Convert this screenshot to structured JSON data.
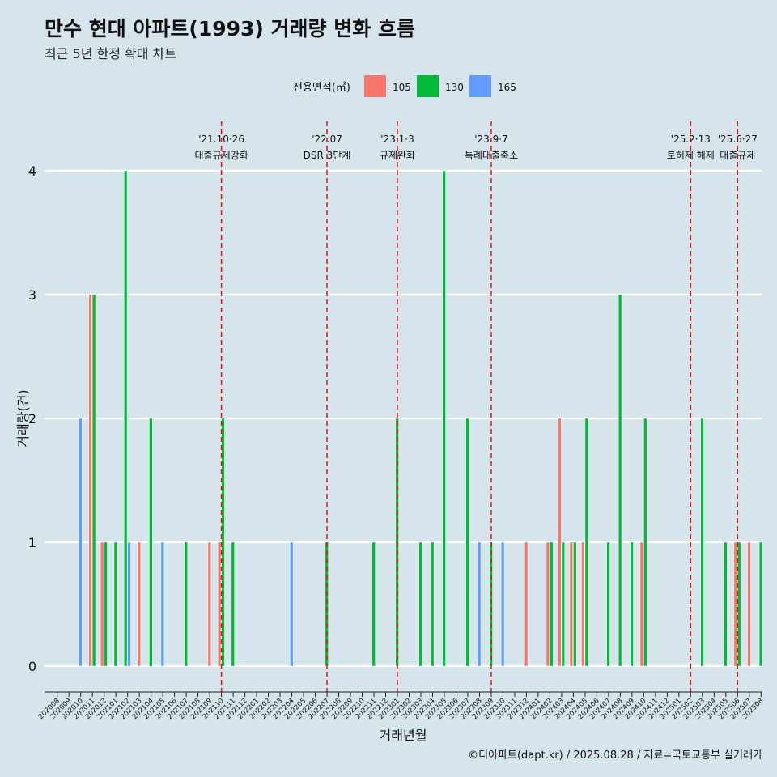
{
  "chart_data": {
    "type": "bar",
    "title": "만수 현대 아파트(1993) 거래량 변화 흐름",
    "subtitle": "최근 5년 한정 확대 차트",
    "xlabel": "거래년월",
    "ylabel": "거래량(건)",
    "ylim": [
      0,
      4
    ],
    "yticks": [
      0,
      1,
      2,
      3,
      4
    ],
    "grid": true,
    "legend_title": "전용면적(㎡)",
    "legend_position": "top",
    "caption": "©디아파트(dapt.kr) / 2025.08.28 / 자료=국토교통부 실거래가",
    "categories": [
      "202008",
      "202009",
      "202010",
      "202011",
      "202012",
      "202101",
      "202102",
      "202103",
      "202104",
      "202105",
      "202106",
      "202107",
      "202108",
      "202109",
      "202110",
      "202111",
      "202112",
      "202201",
      "202202",
      "202203",
      "202204",
      "202205",
      "202206",
      "202207",
      "202208",
      "202209",
      "202210",
      "202211",
      "202212",
      "202301",
      "202302",
      "202303",
      "202304",
      "202305",
      "202306",
      "202307",
      "202308",
      "202309",
      "202310",
      "202311",
      "202312",
      "202401",
      "202402",
      "202403",
      "202404",
      "202405",
      "202406",
      "202407",
      "202408",
      "202409",
      "202410",
      "202411",
      "202412",
      "202501",
      "202502",
      "202503",
      "202504",
      "202505",
      "202506",
      "202507",
      "202508"
    ],
    "series": [
      {
        "name": "105",
        "color": "#f8766d",
        "values": [
          0,
          0,
          0,
          3,
          1,
          0,
          0,
          1,
          0,
          0,
          0,
          0,
          0,
          1,
          1,
          0,
          0,
          0,
          0,
          0,
          0,
          0,
          0,
          0,
          0,
          0,
          0,
          0,
          0,
          0,
          0,
          0,
          0,
          0,
          0,
          0,
          0,
          0,
          0,
          0,
          1,
          0,
          1,
          2,
          1,
          1,
          0,
          0,
          0,
          0,
          1,
          0,
          0,
          0,
          0,
          0,
          0,
          0,
          1,
          1,
          0
        ]
      },
      {
        "name": "130",
        "color": "#00ba38",
        "values": [
          0,
          0,
          0,
          3,
          1,
          1,
          4,
          0,
          2,
          0,
          0,
          1,
          0,
          0,
          2,
          1,
          0,
          0,
          0,
          0,
          0,
          0,
          0,
          1,
          0,
          0,
          0,
          1,
          0,
          2,
          0,
          1,
          1,
          4,
          0,
          2,
          0,
          1,
          0,
          0,
          0,
          0,
          1,
          1,
          1,
          2,
          0,
          1,
          3,
          1,
          2,
          0,
          0,
          0,
          0,
          2,
          0,
          1,
          1,
          0,
          1
        ]
      },
      {
        "name": "165",
        "color": "#619cff",
        "values": [
          0,
          0,
          2,
          0,
          0,
          0,
          1,
          0,
          0,
          1,
          0,
          0,
          0,
          0,
          0,
          0,
          0,
          0,
          0,
          0,
          1,
          0,
          0,
          0,
          0,
          0,
          0,
          0,
          0,
          0,
          0,
          0,
          0,
          0,
          0,
          0,
          1,
          0,
          1,
          0,
          0,
          0,
          0,
          0,
          0,
          0,
          0,
          0,
          0,
          0,
          0,
          0,
          0,
          0,
          0,
          0,
          0,
          0,
          0,
          0,
          0
        ]
      }
    ],
    "annotations": [
      {
        "date": "'21.10·26",
        "label": "대출규제강화",
        "month_index": 14
      },
      {
        "date": "'22.07",
        "label": "DSR 3단계",
        "month_index": 23
      },
      {
        "date": "'23.1·3",
        "label": "규제완화",
        "month_index": 29
      },
      {
        "date": "'23.9·7",
        "label": "특례대출축소",
        "month_index": 37
      },
      {
        "date": "'25.2·13",
        "label": "토허제 해제",
        "month_index": 54
      },
      {
        "date": "'25.6·27",
        "label": "대출규제",
        "month_index": 58
      }
    ]
  }
}
